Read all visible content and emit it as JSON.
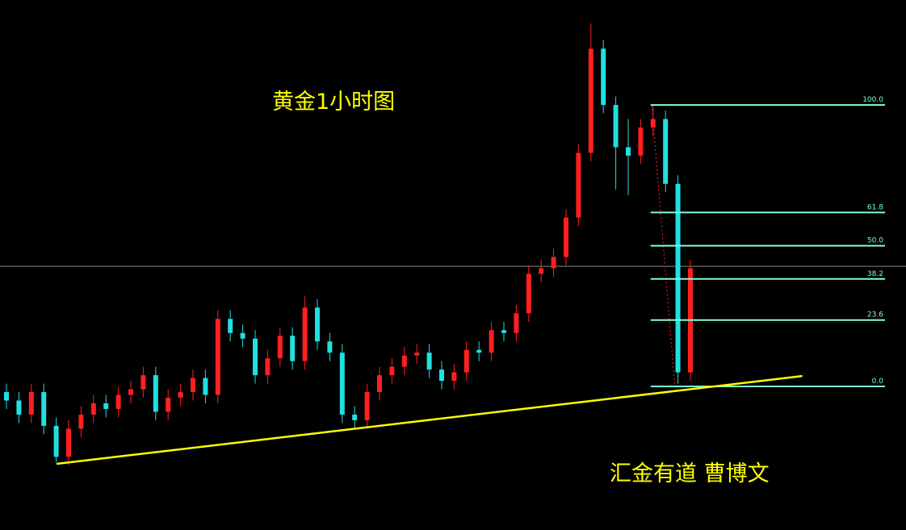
{
  "chart_data": {
    "type": "candlestick",
    "title": "黄金1小时图",
    "watermark": "汇金有道 曹博文",
    "up_color": "#ff2020",
    "down_color": "#20e0e0",
    "xlim": [
      -0.52,
      72.34
    ],
    "ylim": [
      -51,
      137.3
    ],
    "ohlc": [
      [
        -2,
        1,
        -8,
        -5
      ],
      [
        -5,
        -2,
        -13,
        -10
      ],
      [
        -10,
        1,
        -13,
        -2
      ],
      [
        -2,
        1,
        -17,
        -14
      ],
      [
        -14,
        -11,
        -27,
        -25
      ],
      [
        -25,
        -12,
        -28,
        -15
      ],
      [
        -15,
        -7,
        -18,
        -10
      ],
      [
        -10,
        -3,
        -13,
        -6
      ],
      [
        -6,
        -3,
        -11,
        -8
      ],
      [
        -8,
        0,
        -11,
        -3
      ],
      [
        -3,
        2,
        -6,
        -1
      ],
      [
        -1,
        7,
        -4,
        4
      ],
      [
        4,
        7,
        -12,
        -9
      ],
      [
        -9,
        -1,
        -12,
        -4
      ],
      [
        -4,
        1,
        -7,
        -2
      ],
      [
        -2,
        6,
        -5,
        3
      ],
      [
        3,
        6,
        -6,
        -3
      ],
      [
        -3,
        27,
        -6,
        24
      ],
      [
        24,
        27,
        16,
        19
      ],
      [
        19,
        22,
        14,
        17
      ],
      [
        17,
        20,
        1,
        4
      ],
      [
        4,
        13,
        1,
        10
      ],
      [
        10,
        21,
        7,
        18
      ],
      [
        18,
        21,
        6,
        9
      ],
      [
        9,
        32,
        6,
        28
      ],
      [
        28,
        31,
        13,
        16
      ],
      [
        16,
        19,
        9,
        12
      ],
      [
        12,
        15,
        -13,
        -10
      ],
      [
        -10,
        -7,
        -15,
        -12
      ],
      [
        -12,
        1,
        -15,
        -2
      ],
      [
        -2,
        7,
        -5,
        4
      ],
      [
        4,
        10,
        1,
        7
      ],
      [
        7,
        14,
        4,
        11
      ],
      [
        11,
        15,
        8,
        12
      ],
      [
        12,
        15,
        3,
        6
      ],
      [
        6,
        9,
        -1,
        2
      ],
      [
        2,
        8,
        -1,
        5
      ],
      [
        5,
        16,
        2,
        13
      ],
      [
        13,
        16,
        9,
        12
      ],
      [
        12,
        23,
        9,
        20
      ],
      [
        20,
        23,
        16,
        19
      ],
      [
        19,
        29,
        16,
        26
      ],
      [
        26,
        43,
        23,
        40
      ],
      [
        40,
        45,
        37,
        42
      ],
      [
        42,
        49,
        39,
        46
      ],
      [
        46,
        63,
        43,
        60
      ],
      [
        60,
        86,
        57,
        83
      ],
      [
        83,
        129,
        80,
        120
      ],
      [
        120,
        123,
        97,
        100
      ],
      [
        100,
        103,
        70,
        85
      ],
      [
        85,
        95,
        68,
        82
      ],
      [
        82,
        95,
        79,
        92
      ],
      [
        92,
        100,
        89,
        95
      ],
      [
        95,
        98,
        69,
        72
      ],
      [
        72,
        75,
        1,
        5
      ],
      [
        5,
        45,
        2,
        42
      ]
    ],
    "price_line": 42.7,
    "trendline": {
      "x": [
        4.03,
        64
      ],
      "values": [
        -27.5,
        3.7
      ],
      "color": "#ffff00"
    },
    "fib_anchor": {
      "x": [
        51.9,
        53.75
      ],
      "values": [
        100,
        0
      ],
      "color": "#ff2020"
    },
    "fib_x": [
      51.8,
      70.65
    ],
    "fib_color": "#7fffd4",
    "fib_levels": [
      {
        "value": 100,
        "label": "100.0"
      },
      61.8,
      {
        "value": 50,
        "label": "50.0"
      },
      38.2,
      23.6,
      {
        "value": 0,
        "label": "0.0"
      }
    ]
  }
}
